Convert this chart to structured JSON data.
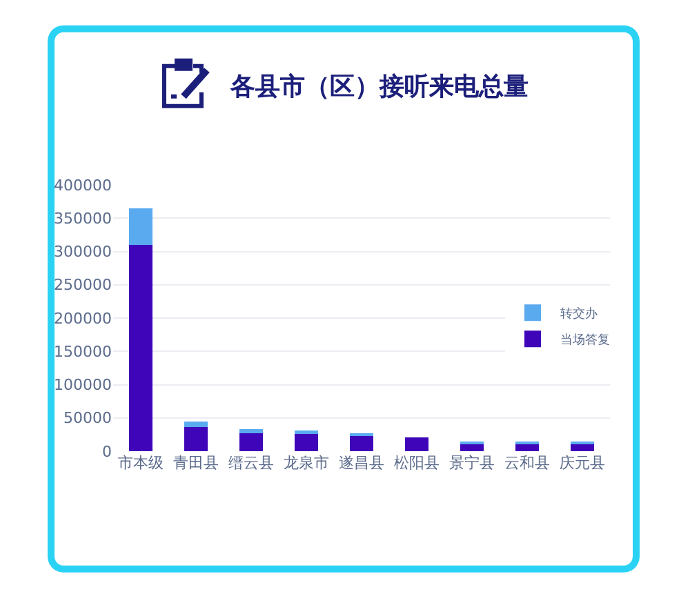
{
  "chart_data": {
    "type": "bar",
    "title": "各县市（区）接听来电总量",
    "categories": [
      "市本级",
      "青田县",
      "缙云县",
      "龙泉市",
      "遂昌县",
      "松阳县",
      "景宁县",
      "云和县",
      "庆元县"
    ],
    "stacked": true,
    "series": [
      {
        "name": "当场答复",
        "color": "#3f05b8",
        "values": [
          310000,
          36000,
          29000,
          26000,
          23000,
          21000,
          11000,
          11000,
          11000
        ]
      },
      {
        "name": "转交办",
        "color": "#5aaaf0",
        "values": [
          55000,
          9000,
          4000,
          5000,
          2000,
          0,
          3000,
          3000,
          3000
        ]
      }
    ],
    "ylim": [
      0,
      400000
    ],
    "yticks": [
      0,
      50000,
      100000,
      150000,
      200000,
      250000,
      300000,
      350000,
      400000
    ],
    "grid": "y",
    "legend": "right"
  }
}
